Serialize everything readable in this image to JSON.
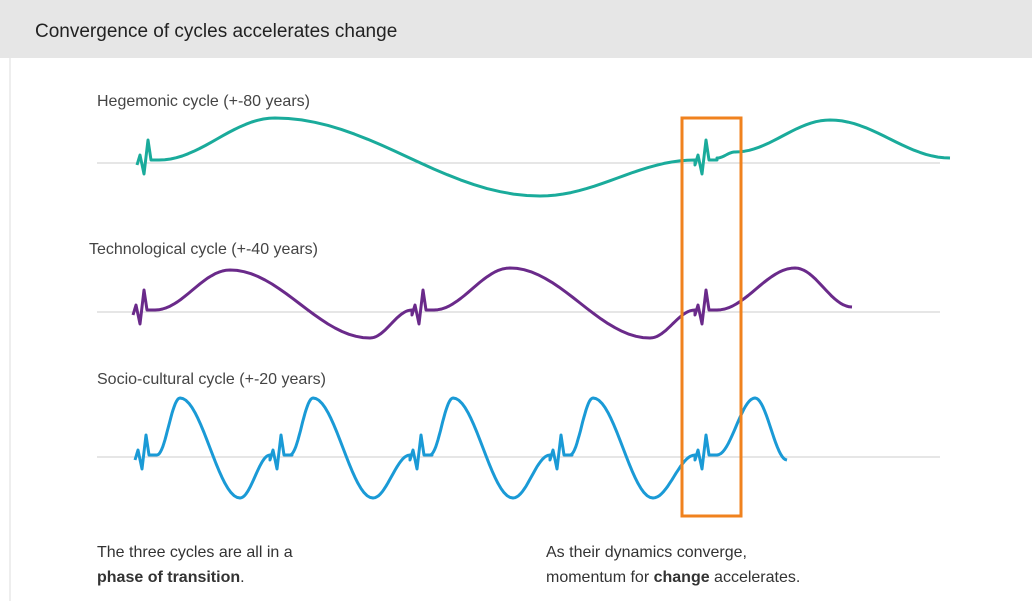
{
  "header": {
    "title": "Convergence of cycles accelerates change"
  },
  "cycles": [
    {
      "label": "Hegemonic cycle (+-80 years)"
    },
    {
      "label": "Technological cycle (+-40 years)"
    },
    {
      "label": "Socio-cultural cycle (+-20 years)"
    }
  ],
  "captions": [
    {
      "line1": "The three cycles are all in a",
      "bold": "phase of transition",
      "after": "."
    },
    {
      "line1": "As their dynamics converge,",
      "before": "momentum for ",
      "bold": "change",
      "after": " accelerates."
    }
  ]
}
